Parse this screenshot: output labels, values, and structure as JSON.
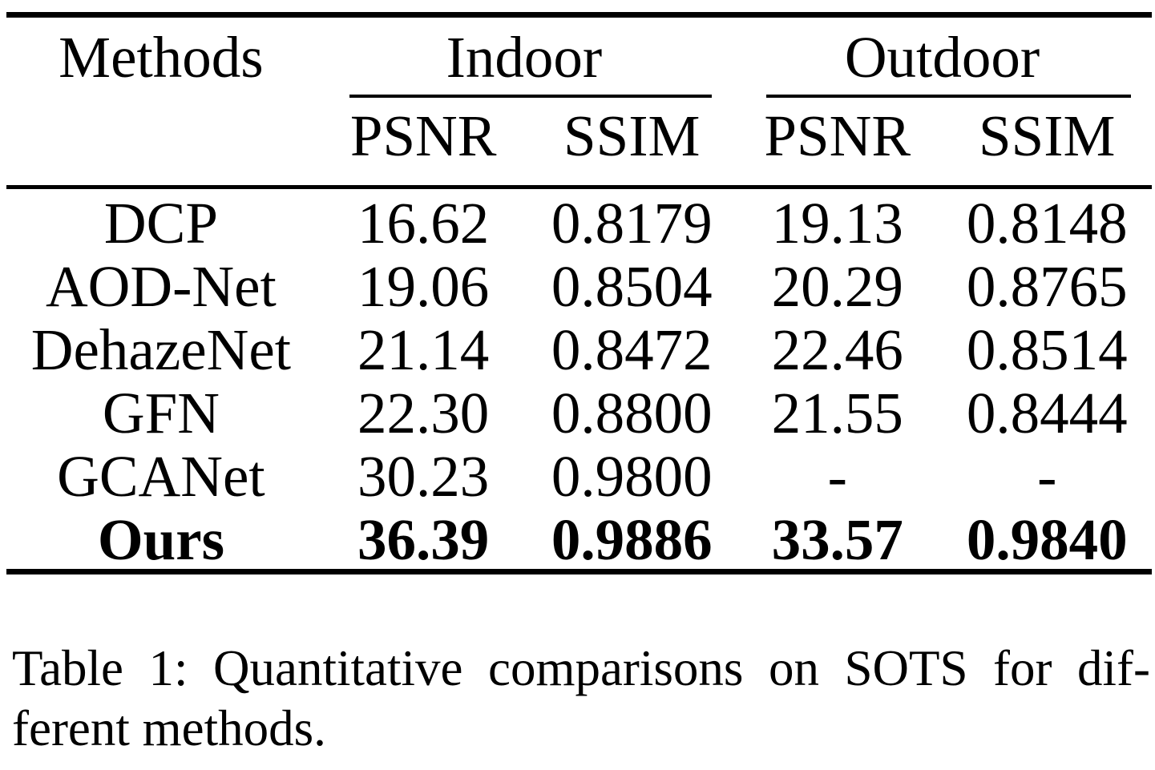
{
  "table": {
    "header": {
      "methods": "Methods",
      "groups": [
        {
          "label": "Indoor",
          "cols": [
            "PSNR",
            "SSIM"
          ]
        },
        {
          "label": "Outdoor",
          "cols": [
            "PSNR",
            "SSIM"
          ]
        }
      ]
    },
    "rows": [
      {
        "method": "DCP",
        "values": [
          "16.62",
          "0.8179",
          "19.13",
          "0.8148"
        ],
        "bold": false
      },
      {
        "method": "AOD-Net",
        "values": [
          "19.06",
          "0.8504",
          "20.29",
          "0.8765"
        ],
        "bold": false
      },
      {
        "method": "DehazeNet",
        "values": [
          "21.14",
          "0.8472",
          "22.46",
          "0.8514"
        ],
        "bold": false
      },
      {
        "method": "GFN",
        "values": [
          "22.30",
          "0.8800",
          "21.55",
          "0.8444"
        ],
        "bold": false
      },
      {
        "method": "GCANet",
        "values": [
          "30.23",
          "0.9800",
          "-",
          "-"
        ],
        "bold": false
      },
      {
        "method": "Ours",
        "values": [
          "36.39",
          "0.9886",
          "33.57",
          "0.9840"
        ],
        "bold": true
      }
    ]
  },
  "caption": {
    "line1": "Table 1: Quantitative comparisons on SOTS for dif-",
    "line2": "ferent methods."
  },
  "colors": {
    "text": "#000000",
    "background": "#ffffff",
    "rule": "#000000"
  }
}
